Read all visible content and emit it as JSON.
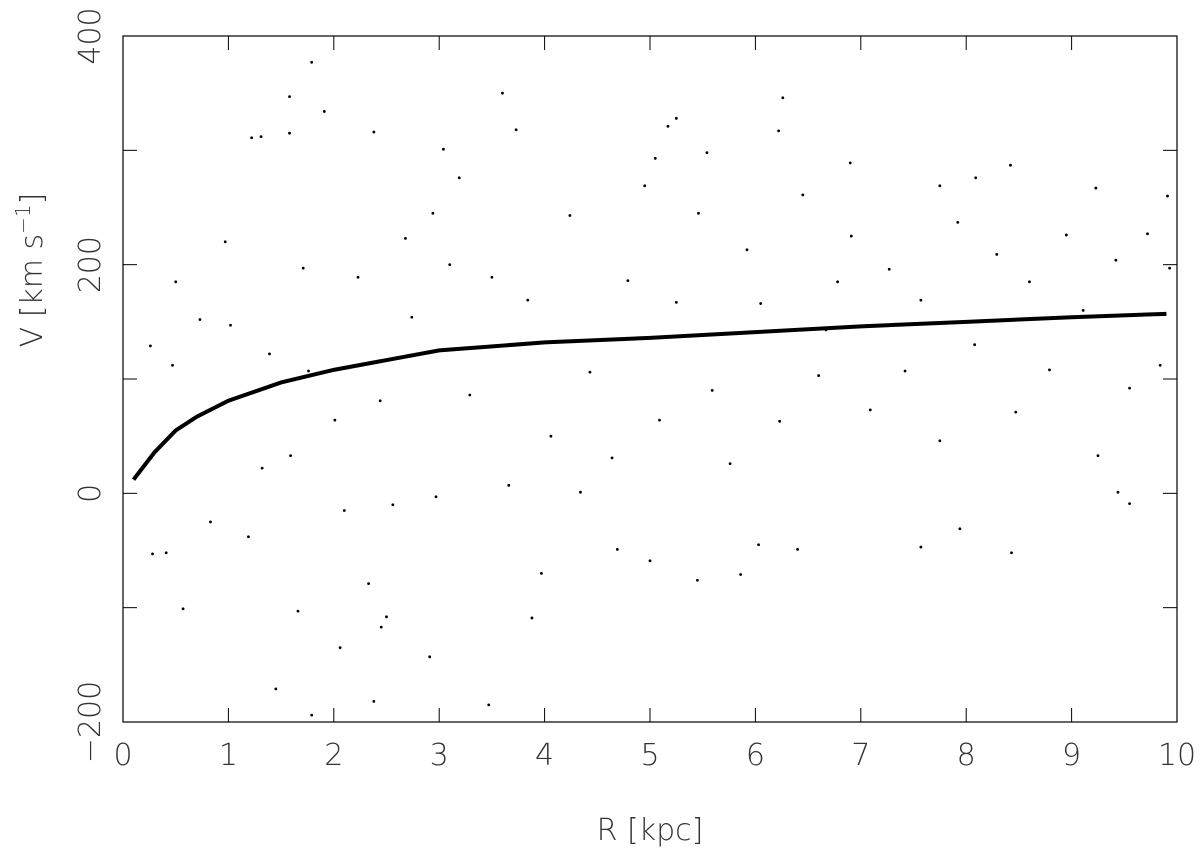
{
  "chart_data": {
    "type": "scatter",
    "xlabel": "R [kpc]",
    "ylabel": "V [km s",
    "ylabel_sup": "−1",
    "ylabel_end": "]",
    "xlim": [
      0,
      10
    ],
    "ylim": [
      -200,
      400
    ],
    "xticks": [
      0,
      1,
      2,
      3,
      4,
      5,
      6,
      7,
      8,
      9,
      10
    ],
    "yticks": [
      {
        "value": -200,
        "label": "−200"
      },
      0,
      200,
      400
    ],
    "yminorticks": [
      -100,
      100,
      300
    ],
    "series": [
      {
        "marker": "dot",
        "color": "#000000",
        "x": [
          1.79,
          1.58,
          1.91,
          3.6,
          1.22,
          1.31,
          1.58,
          2.38,
          3.04,
          3.19,
          5.17,
          5.25,
          6.26,
          6.22,
          3.73,
          5.54,
          5.05,
          6.9,
          9.91,
          9.23,
          7.75,
          8.09,
          1.45,
          1.79,
          2.38,
          3.47,
          2.91,
          2.06,
          2.45,
          2.5,
          3.88,
          0.57,
          1.66,
          0.28,
          0.41,
          0.83,
          1.19,
          2.33,
          3.97,
          5.45,
          5.86,
          5.0,
          6.03,
          7.94,
          8.43,
          7.57,
          6.4,
          4.69,
          0.26,
          0.47,
          0.5,
          0.73,
          0.97,
          1.02,
          1.39,
          1.32,
          1.59,
          2.01,
          2.23,
          2.44,
          2.68,
          2.74,
          2.94,
          3.1,
          3.29,
          3.5,
          3.66,
          3.84,
          4.06,
          4.24,
          4.43,
          4.64,
          4.79,
          4.95,
          5.09,
          5.25,
          5.46,
          5.59,
          5.76,
          5.92,
          6.05,
          6.23,
          6.45,
          6.6,
          6.78,
          6.91,
          7.09,
          7.27,
          7.42,
          7.57,
          7.75,
          7.92,
          8.08,
          8.29,
          8.47,
          8.6,
          8.79,
          8.95,
          9.11,
          9.25,
          9.42,
          9.55,
          9.72,
          9.84,
          9.93,
          9.44,
          9.55,
          1.71,
          1.76,
          2.1,
          2.56,
          2.97,
          4.34,
          6.67,
          8.42
        ],
        "y": [
          377,
          347,
          334,
          350,
          311,
          312,
          315,
          316,
          301,
          276,
          321,
          328,
          346,
          317,
          318,
          298,
          293,
          289,
          260,
          267,
          269,
          276,
          -171,
          -194,
          -182,
          -185,
          -143,
          -135,
          -117,
          -108,
          -109,
          -101,
          -103,
          -53,
          -52,
          -25,
          -38,
          -79,
          -70,
          -76,
          -71,
          -59,
          -45,
          -31,
          -52,
          -47,
          -49,
          -49,
          129,
          112,
          185,
          152,
          220,
          147,
          122,
          22,
          33,
          64,
          189,
          81,
          223,
          154,
          245,
          200,
          86,
          189,
          7,
          169,
          50,
          243,
          106,
          31,
          186,
          269,
          64,
          167,
          245,
          90,
          26,
          213,
          166,
          63,
          261,
          103,
          185,
          225,
          73,
          196,
          107,
          169,
          46,
          237,
          130,
          209,
          71,
          185,
          108,
          226,
          160,
          33,
          204,
          92,
          227,
          112,
          197,
          1,
          -9,
          197,
          107,
          -15,
          -10,
          -3,
          1,
          143,
          287
        ]
      },
      {
        "marker": "line",
        "color": "#000000",
        "x": [
          0.1,
          0.2,
          0.3,
          0.5,
          0.7,
          1,
          1.5,
          2,
          3,
          4,
          5,
          6,
          7,
          8,
          9,
          9.9
        ],
        "y": [
          12,
          24,
          36,
          55,
          67,
          81,
          97,
          108,
          125,
          132,
          136,
          141,
          146,
          150,
          154,
          157
        ]
      }
    ]
  }
}
